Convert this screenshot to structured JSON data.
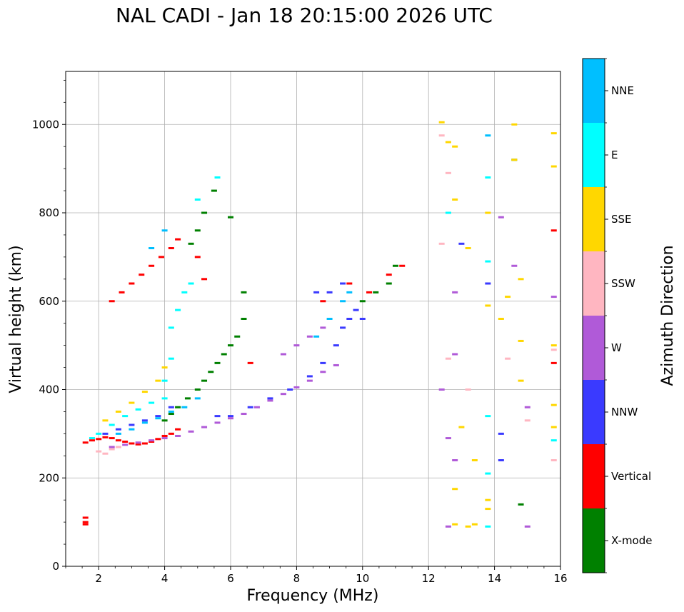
{
  "chart_data": {
    "type": "scatter",
    "title": "NAL CADI - Jan 18 20:15:00 2026 UTC",
    "xlabel": "Frequency (MHz)",
    "ylabel": "Virtual height (km)",
    "xlim": [
      1,
      16
    ],
    "ylim": [
      0,
      1120
    ],
    "xticks": [
      2,
      4,
      6,
      8,
      10,
      12,
      14,
      16
    ],
    "yticks": [
      0,
      200,
      400,
      600,
      800,
      1000
    ],
    "grid": true,
    "colorbar": {
      "label": "Azimuth Direction",
      "categories": [
        {
          "name": "X-mode",
          "color": "#008000"
        },
        {
          "name": "Vertical",
          "color": "#ff0000"
        },
        {
          "name": "NNW",
          "color": "#3a3aff"
        },
        {
          "name": "W",
          "color": "#b05ad8"
        },
        {
          "name": "SSW",
          "color": "#ffb6c1"
        },
        {
          "name": "SSE",
          "color": "#ffd700"
        },
        {
          "name": "E",
          "color": "#00ffff"
        },
        {
          "name": "NNE",
          "color": "#00bfff"
        }
      ]
    },
    "traces": [
      {
        "category": "Vertical",
        "points": [
          [
            1.6,
            280
          ],
          [
            1.8,
            285
          ],
          [
            2.0,
            288
          ],
          [
            2.2,
            292
          ],
          [
            2.4,
            290
          ],
          [
            2.6,
            285
          ],
          [
            2.8,
            282
          ],
          [
            3.0,
            278
          ],
          [
            3.2,
            276
          ],
          [
            3.4,
            278
          ],
          [
            3.6,
            282
          ],
          [
            3.8,
            288
          ],
          [
            4.0,
            295
          ],
          [
            4.2,
            300
          ],
          [
            4.4,
            310
          ],
          [
            2.4,
            600
          ],
          [
            2.7,
            620
          ],
          [
            3.0,
            640
          ],
          [
            3.3,
            660
          ],
          [
            3.6,
            680
          ],
          [
            3.9,
            700
          ],
          [
            4.2,
            720
          ],
          [
            4.4,
            740
          ],
          [
            5.0,
            700
          ],
          [
            5.2,
            650
          ],
          [
            6.6,
            460
          ],
          [
            8.8,
            600
          ],
          [
            9.6,
            640
          ],
          [
            10.2,
            620
          ],
          [
            10.8,
            660
          ],
          [
            11.2,
            680
          ],
          [
            15.8,
            760
          ],
          [
            15.8,
            460
          ],
          [
            1.6,
            100
          ],
          [
            1.6,
            110
          ],
          [
            1.6,
            95
          ]
        ]
      },
      {
        "category": "X-mode",
        "points": [
          [
            4.0,
            330
          ],
          [
            4.2,
            345
          ],
          [
            4.4,
            360
          ],
          [
            4.7,
            380
          ],
          [
            5.0,
            400
          ],
          [
            5.2,
            420
          ],
          [
            5.4,
            440
          ],
          [
            5.6,
            460
          ],
          [
            5.8,
            480
          ],
          [
            6.0,
            500
          ],
          [
            6.2,
            520
          ],
          [
            6.4,
            560
          ],
          [
            6.4,
            620
          ],
          [
            6.0,
            790
          ],
          [
            5.5,
            850
          ],
          [
            5.2,
            800
          ],
          [
            5.0,
            760
          ],
          [
            4.8,
            730
          ],
          [
            10.0,
            600
          ],
          [
            10.4,
            620
          ],
          [
            10.8,
            640
          ],
          [
            11.0,
            680
          ],
          [
            14.6,
            920
          ],
          [
            14.8,
            140
          ]
        ]
      },
      {
        "category": "NNW",
        "points": [
          [
            2.2,
            300
          ],
          [
            2.6,
            310
          ],
          [
            3.0,
            320
          ],
          [
            3.4,
            330
          ],
          [
            3.8,
            340
          ],
          [
            4.2,
            360
          ],
          [
            5.6,
            340
          ],
          [
            6.0,
            340
          ],
          [
            6.6,
            360
          ],
          [
            7.2,
            380
          ],
          [
            7.8,
            400
          ],
          [
            8.4,
            430
          ],
          [
            8.8,
            460
          ],
          [
            9.2,
            500
          ],
          [
            9.4,
            540
          ],
          [
            9.6,
            560
          ],
          [
            9.8,
            580
          ],
          [
            10.0,
            560
          ],
          [
            8.6,
            620
          ],
          [
            9.0,
            620
          ],
          [
            9.4,
            640
          ],
          [
            13.8,
            640
          ],
          [
            13.0,
            730
          ],
          [
            14.2,
            300
          ],
          [
            14.2,
            240
          ]
        ]
      },
      {
        "category": "W",
        "points": [
          [
            2.4,
            270
          ],
          [
            2.8,
            275
          ],
          [
            3.2,
            280
          ],
          [
            3.6,
            285
          ],
          [
            4.0,
            290
          ],
          [
            4.4,
            295
          ],
          [
            4.8,
            305
          ],
          [
            5.2,
            315
          ],
          [
            5.6,
            325
          ],
          [
            6.0,
            335
          ],
          [
            6.4,
            345
          ],
          [
            6.8,
            360
          ],
          [
            7.2,
            375
          ],
          [
            7.6,
            390
          ],
          [
            8.0,
            405
          ],
          [
            8.4,
            420
          ],
          [
            8.8,
            440
          ],
          [
            9.2,
            455
          ],
          [
            7.6,
            480
          ],
          [
            8.0,
            500
          ],
          [
            8.4,
            520
          ],
          [
            8.8,
            540
          ],
          [
            12.4,
            400
          ],
          [
            12.6,
            290
          ],
          [
            12.8,
            480
          ],
          [
            12.8,
            620
          ],
          [
            12.8,
            240
          ],
          [
            14.2,
            790
          ],
          [
            14.6,
            680
          ],
          [
            15.0,
            360
          ],
          [
            15.8,
            610
          ],
          [
            12.6,
            90
          ],
          [
            15.0,
            90
          ]
        ]
      },
      {
        "category": "SSW",
        "points": [
          [
            2.0,
            260
          ],
          [
            2.2,
            255
          ],
          [
            2.4,
            265
          ],
          [
            2.6,
            270
          ],
          [
            12.6,
            890
          ],
          [
            12.4,
            730
          ],
          [
            13.2,
            400
          ],
          [
            14.4,
            470
          ],
          [
            15.8,
            490
          ],
          [
            15.8,
            240
          ],
          [
            15.0,
            330
          ],
          [
            12.6,
            470
          ],
          [
            12.4,
            975
          ]
        ]
      },
      {
        "category": "SSE",
        "points": [
          [
            2.2,
            330
          ],
          [
            2.6,
            350
          ],
          [
            3.0,
            370
          ],
          [
            3.4,
            395
          ],
          [
            3.8,
            420
          ],
          [
            4.0,
            450
          ],
          [
            12.4,
            1005
          ],
          [
            12.6,
            960
          ],
          [
            12.8,
            950
          ],
          [
            12.8,
            830
          ],
          [
            13.2,
            720
          ],
          [
            13.8,
            800
          ],
          [
            13.8,
            590
          ],
          [
            14.2,
            560
          ],
          [
            14.6,
            920
          ],
          [
            14.6,
            1000
          ],
          [
            14.8,
            650
          ],
          [
            14.8,
            510
          ],
          [
            14.8,
            420
          ],
          [
            15.8,
            980
          ],
          [
            15.8,
            905
          ],
          [
            15.8,
            500
          ],
          [
            15.8,
            365
          ],
          [
            15.8,
            315
          ],
          [
            12.8,
            175
          ],
          [
            12.8,
            95
          ],
          [
            13.2,
            90
          ],
          [
            13.4,
            95
          ],
          [
            13.4,
            240
          ],
          [
            13.0,
            315
          ],
          [
            13.8,
            150
          ],
          [
            13.8,
            130
          ],
          [
            14.4,
            610
          ]
        ]
      },
      {
        "category": "E",
        "points": [
          [
            1.8,
            290
          ],
          [
            2.0,
            300
          ],
          [
            2.4,
            320
          ],
          [
            2.8,
            340
          ],
          [
            3.2,
            355
          ],
          [
            3.6,
            370
          ],
          [
            4.0,
            380
          ],
          [
            4.0,
            420
          ],
          [
            4.2,
            470
          ],
          [
            4.2,
            540
          ],
          [
            4.4,
            580
          ],
          [
            4.6,
            620
          ],
          [
            4.8,
            640
          ],
          [
            5.0,
            830
          ],
          [
            5.6,
            880
          ],
          [
            13.8,
            880
          ],
          [
            13.8,
            690
          ],
          [
            13.8,
            210
          ],
          [
            13.8,
            340
          ],
          [
            13.8,
            90
          ],
          [
            12.6,
            800
          ],
          [
            15.8,
            285
          ]
        ]
      },
      {
        "category": "NNE",
        "points": [
          [
            2.6,
            300
          ],
          [
            3.0,
            310
          ],
          [
            3.4,
            325
          ],
          [
            3.8,
            335
          ],
          [
            4.2,
            350
          ],
          [
            4.6,
            360
          ],
          [
            5.0,
            380
          ],
          [
            3.6,
            720
          ],
          [
            4.0,
            760
          ],
          [
            8.6,
            520
          ],
          [
            9.0,
            560
          ],
          [
            9.4,
            600
          ],
          [
            9.6,
            620
          ],
          [
            13.8,
            975
          ]
        ]
      }
    ]
  }
}
